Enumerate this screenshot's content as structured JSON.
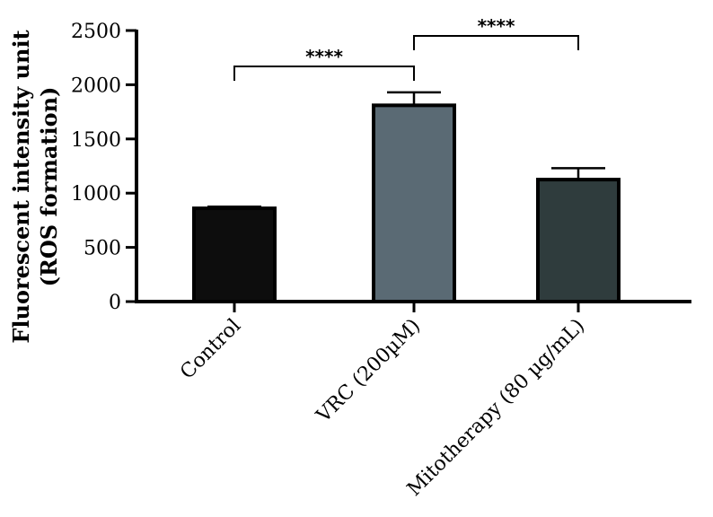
{
  "chart_data": {
    "type": "bar",
    "title": "",
    "xlabel": "",
    "ylabel_lines": [
      "Fluorescent intensity unit",
      "(ROS formation)"
    ],
    "ylim": [
      0,
      2500
    ],
    "yticks": [
      0,
      500,
      1000,
      1500,
      2000,
      2500
    ],
    "ytick_labels": [
      "0",
      "500",
      "1000",
      "1500",
      "2000",
      "2500"
    ],
    "categories": [
      "Control",
      "VRC (200µM)",
      "Mitotherapy (80 µg/mL)"
    ],
    "values": [
      860,
      1810,
      1125
    ],
    "errors": [
      15,
      120,
      105
    ],
    "colors": [
      "#0d0d0d",
      "#5a6a74",
      "#2f3c3d"
    ],
    "significance": [
      {
        "from": 0,
        "to": 1,
        "label": "****"
      },
      {
        "from": 1,
        "to": 2,
        "label": "****"
      }
    ]
  }
}
